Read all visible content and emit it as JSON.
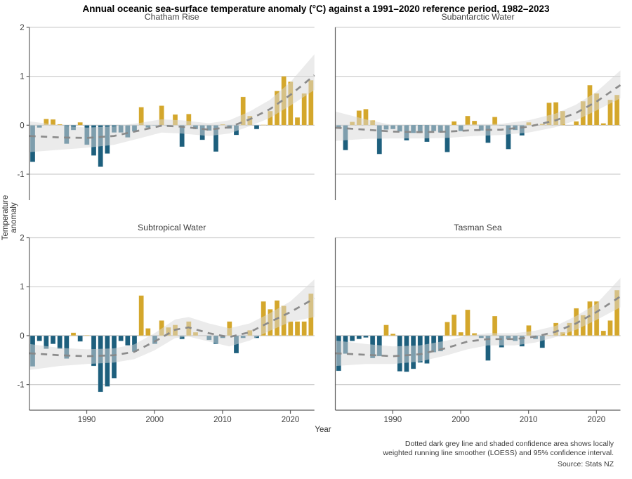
{
  "title": "Annual oceanic sea-surface temperature anomaly (°C) against a 1991–2020 reference period, 1982–2023",
  "y_axis_label": "Temperature anomaly",
  "x_axis_label": "Year",
  "footnote_line1": "Dotted dark grey line and shaded confidence area shows locally",
  "footnote_line2": "weighted running line smoother (LOESS) and 95% confidence interval.",
  "source": "Source: Stats NZ",
  "colors": {
    "positive_bar": "#d4a72c",
    "negative_bar": "#1d5f7d",
    "confidence_band": "#d8d8d8",
    "loess_line": "#878787",
    "gridline": "#cfcfcf",
    "zero_line": "#bdbdbd",
    "axis_spine": "#5f5f5f",
    "panel_title_text": "#404040",
    "tick_text": "#3f3f3f"
  },
  "axes": {
    "year_start": 1982,
    "year_end": 2023,
    "y_ticks": [
      "2",
      "1",
      "0",
      "-1"
    ],
    "y_tick_values": [
      2,
      1,
      0,
      -1
    ],
    "x_ticks": [
      "1990",
      "2000",
      "2010",
      "2020"
    ],
    "x_tick_values": [
      1990,
      2000,
      2010,
      2020
    ],
    "ylim": [
      -1.5,
      2
    ]
  },
  "chart_data": [
    {
      "type": "bar",
      "title": "Chatham Rise",
      "values": [
        -0.75,
        -0.05,
        0.13,
        0.12,
        0.02,
        -0.38,
        -0.1,
        0.06,
        -0.4,
        -0.62,
        -0.85,
        -0.58,
        -0.15,
        -0.15,
        -0.25,
        -0.13,
        0.37,
        -0.05,
        -0.01,
        0.4,
        -0.02,
        0.22,
        -0.44,
        0.23,
        -0.08,
        -0.3,
        -0.11,
        -0.54,
        0.02,
        -0.07,
        -0.2,
        0.58,
        0.19,
        -0.08,
        0.01,
        0.29,
        0.7,
        1.0,
        0.89,
        0.16,
        0.65,
        0.92
      ],
      "loess": [
        [
          1982,
          -0.22
        ],
        [
          1986,
          -0.25
        ],
        [
          1990,
          -0.26
        ],
        [
          1994,
          -0.22
        ],
        [
          1998,
          -0.1
        ],
        [
          2001,
          -0.01
        ],
        [
          2004,
          -0.03
        ],
        [
          2008,
          -0.09
        ],
        [
          2011,
          -0.04
        ],
        [
          2014,
          0.12
        ],
        [
          2017,
          0.33
        ],
        [
          2020,
          0.62
        ],
        [
          2023,
          1.02
        ]
      ],
      "band": [
        [
          1982,
          0.08,
          -0.55
        ],
        [
          1986,
          0.0,
          -0.5
        ],
        [
          1990,
          -0.05,
          -0.46
        ],
        [
          1994,
          -0.02,
          -0.4
        ],
        [
          1998,
          0.05,
          -0.26
        ],
        [
          2001,
          0.12,
          -0.15
        ],
        [
          2004,
          0.1,
          -0.17
        ],
        [
          2008,
          0.04,
          -0.22
        ],
        [
          2011,
          0.1,
          -0.17
        ],
        [
          2014,
          0.28,
          -0.02
        ],
        [
          2017,
          0.52,
          0.15
        ],
        [
          2020,
          0.88,
          0.4
        ],
        [
          2023,
          1.45,
          0.72
        ]
      ]
    },
    {
      "type": "bar",
      "title": "Subantarctic Water",
      "values": [
        -0.04,
        -0.51,
        0.07,
        0.3,
        0.33,
        0.1,
        -0.59,
        -0.09,
        -0.08,
        -0.13,
        -0.31,
        -0.16,
        -0.15,
        -0.34,
        -0.12,
        -0.15,
        -0.55,
        0.08,
        -0.12,
        0.19,
        0.09,
        -0.11,
        -0.36,
        0.17,
        -0.01,
        -0.49,
        -0.1,
        -0.21,
        0.06,
        0.02,
        0.03,
        0.46,
        0.47,
        0.29,
        0.0,
        0.08,
        0.49,
        0.82,
        0.65,
        0.04,
        0.52,
        0.62
      ],
      "loess": [
        [
          1982,
          -0.05
        ],
        [
          1986,
          -0.09
        ],
        [
          1990,
          -0.13
        ],
        [
          1994,
          -0.14
        ],
        [
          1998,
          -0.13
        ],
        [
          2002,
          -0.1
        ],
        [
          2006,
          -0.09
        ],
        [
          2010,
          -0.03
        ],
        [
          2014,
          0.1
        ],
        [
          2017,
          0.25
        ],
        [
          2020,
          0.48
        ],
        [
          2023,
          0.82
        ]
      ],
      "band": [
        [
          1982,
          0.28,
          -0.32
        ],
        [
          1986,
          0.12,
          -0.28
        ],
        [
          1990,
          0.0,
          -0.27
        ],
        [
          1994,
          -0.01,
          -0.27
        ],
        [
          1998,
          0.0,
          -0.26
        ],
        [
          2002,
          0.02,
          -0.22
        ],
        [
          2006,
          0.03,
          -0.2
        ],
        [
          2010,
          0.1,
          -0.15
        ],
        [
          2014,
          0.24,
          -0.04
        ],
        [
          2017,
          0.42,
          0.1
        ],
        [
          2020,
          0.68,
          0.3
        ],
        [
          2023,
          1.12,
          0.55
        ]
      ]
    },
    {
      "type": "bar",
      "title": "Subtropical Water",
      "values": [
        -0.63,
        -0.11,
        -0.27,
        -0.17,
        -0.27,
        -0.47,
        0.06,
        -0.12,
        0.01,
        -0.62,
        -1.15,
        -1.04,
        -0.87,
        -0.11,
        -0.2,
        -0.33,
        0.82,
        0.15,
        -0.17,
        0.31,
        0.17,
        0.22,
        -0.07,
        0.29,
        0.07,
        0.0,
        -0.09,
        -0.17,
        -0.05,
        0.29,
        -0.36,
        -0.05,
        0.11,
        -0.05,
        0.7,
        0.54,
        0.72,
        0.61,
        0.29,
        0.29,
        0.29,
        0.86
      ],
      "loess": [
        [
          1982,
          -0.36
        ],
        [
          1986,
          -0.4
        ],
        [
          1990,
          -0.42
        ],
        [
          1994,
          -0.4
        ],
        [
          1997,
          -0.33
        ],
        [
          2000,
          -0.12
        ],
        [
          2003,
          0.12
        ],
        [
          2005,
          0.17
        ],
        [
          2008,
          0.05
        ],
        [
          2011,
          -0.03
        ],
        [
          2014,
          0.07
        ],
        [
          2017,
          0.28
        ],
        [
          2020,
          0.48
        ],
        [
          2023,
          0.76
        ]
      ],
      "band": [
        [
          1982,
          -0.17,
          -0.7
        ],
        [
          1986,
          -0.25,
          -0.62
        ],
        [
          1990,
          -0.28,
          -0.58
        ],
        [
          1994,
          -0.26,
          -0.55
        ],
        [
          1997,
          -0.18,
          -0.48
        ],
        [
          2000,
          0.05,
          -0.3
        ],
        [
          2003,
          0.33,
          -0.05
        ],
        [
          2005,
          0.38,
          -0.02
        ],
        [
          2008,
          0.25,
          -0.12
        ],
        [
          2011,
          0.15,
          -0.22
        ],
        [
          2014,
          0.25,
          -0.1
        ],
        [
          2017,
          0.46,
          0.1
        ],
        [
          2020,
          0.7,
          0.28
        ],
        [
          2023,
          1.15,
          0.38
        ]
      ]
    },
    {
      "type": "bar",
      "title": "Tasman Sea",
      "values": [
        -0.72,
        -0.37,
        -0.11,
        -0.07,
        -0.04,
        -0.46,
        -0.42,
        0.22,
        0.04,
        -0.73,
        -0.74,
        -0.68,
        -0.55,
        -0.57,
        -0.34,
        -0.32,
        0.28,
        0.43,
        0.07,
        0.53,
        0.05,
        -0.05,
        -0.51,
        0.4,
        -0.24,
        -0.08,
        -0.11,
        -0.22,
        0.21,
        -0.07,
        -0.25,
        0.01,
        0.26,
        0.07,
        0.26,
        0.56,
        0.42,
        0.7,
        0.7,
        0.1,
        0.31,
        0.93
      ],
      "loess": [
        [
          1982,
          -0.36
        ],
        [
          1986,
          -0.39
        ],
        [
          1990,
          -0.42
        ],
        [
          1994,
          -0.38
        ],
        [
          1998,
          -0.25
        ],
        [
          2001,
          -0.12
        ],
        [
          2004,
          -0.07
        ],
        [
          2008,
          -0.07
        ],
        [
          2011,
          -0.02
        ],
        [
          2014,
          0.08
        ],
        [
          2017,
          0.25
        ],
        [
          2020,
          0.48
        ],
        [
          2023,
          0.8
        ]
      ],
      "band": [
        [
          1982,
          -0.1,
          -0.62
        ],
        [
          1986,
          -0.17,
          -0.58
        ],
        [
          1990,
          -0.22,
          -0.58
        ],
        [
          1994,
          -0.2,
          -0.53
        ],
        [
          1998,
          -0.1,
          -0.4
        ],
        [
          2001,
          0.0,
          -0.28
        ],
        [
          2004,
          0.05,
          -0.2
        ],
        [
          2008,
          0.05,
          -0.2
        ],
        [
          2011,
          0.1,
          -0.14
        ],
        [
          2014,
          0.2,
          -0.03
        ],
        [
          2017,
          0.4,
          0.12
        ],
        [
          2020,
          0.65,
          0.32
        ],
        [
          2023,
          1.18,
          0.58
        ]
      ]
    }
  ]
}
